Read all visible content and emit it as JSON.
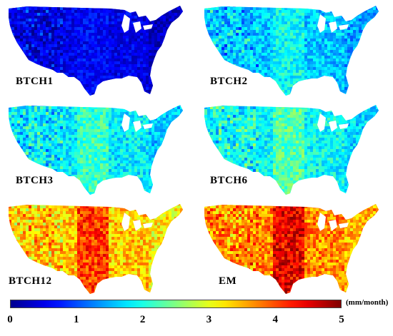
{
  "panels": [
    {
      "id": "BTCH1",
      "label": "BTCH1",
      "mean_level": 0.5
    },
    {
      "id": "BTCH2",
      "label": "BTCH2",
      "mean_level": 1.6
    },
    {
      "id": "BTCH3",
      "label": "BTCH3",
      "mean_level": 1.8
    },
    {
      "id": "BTCH6",
      "label": "BTCH6",
      "mean_level": 1.9
    },
    {
      "id": "BTCH12",
      "label": "BTCH12",
      "mean_level": 3.4
    },
    {
      "id": "EM",
      "label": "EM",
      "mean_level": 3.7
    }
  ],
  "colorbar": {
    "ticks": [
      "0",
      "1",
      "2",
      "3",
      "4",
      "5"
    ],
    "unit": "(mm/month)",
    "min": 0,
    "max": 5,
    "colormap": "jet",
    "colors": [
      "#00008f",
      "#0000ff",
      "#00ffff",
      "#ffff00",
      "#ff0000",
      "#800000"
    ]
  }
}
